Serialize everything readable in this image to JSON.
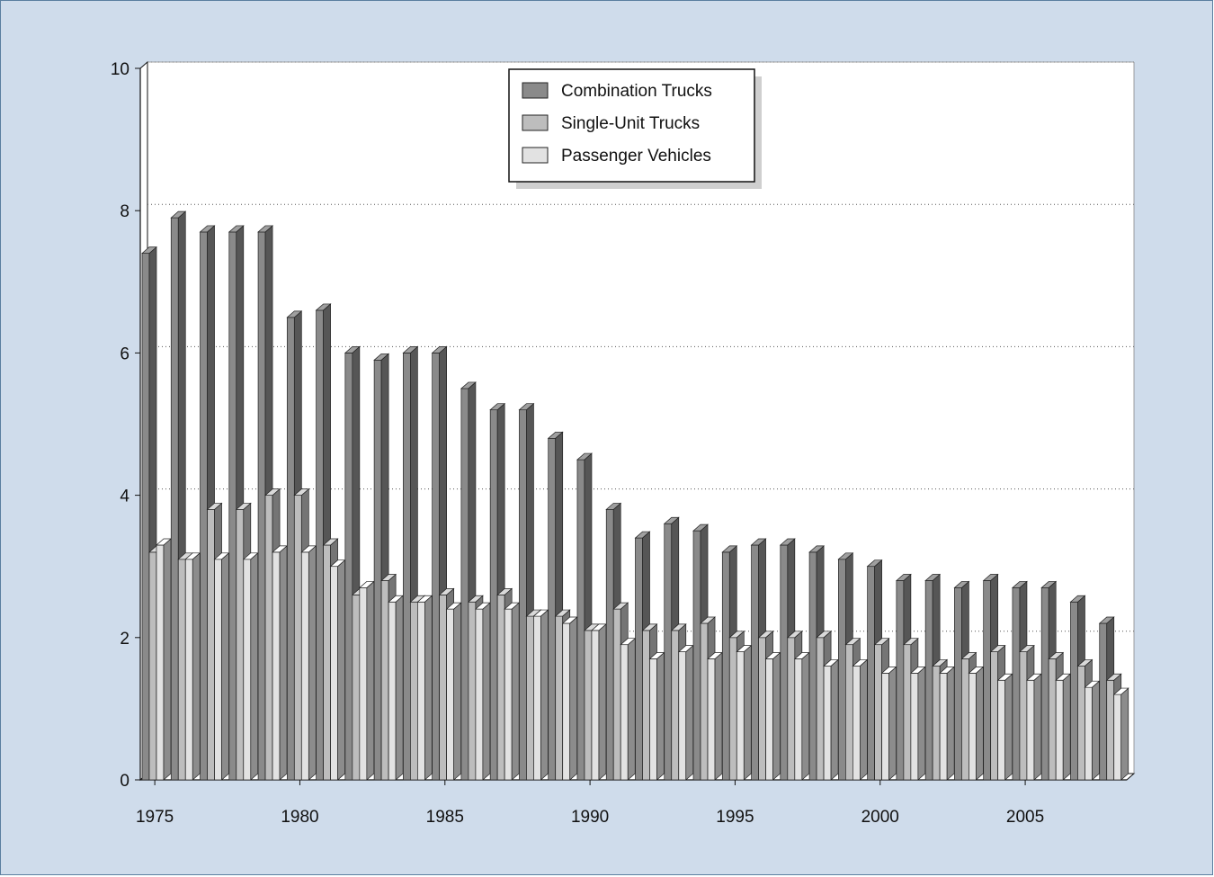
{
  "chart_data": {
    "type": "bar",
    "title": "",
    "xlabel": "",
    "ylabel": "",
    "ylim": [
      0,
      10
    ],
    "y_ticks": [
      "0",
      "2",
      "4",
      "6",
      "8",
      "10"
    ],
    "x_ticks": [
      "1975",
      "1980",
      "1985",
      "1990",
      "1995",
      "2000",
      "2005"
    ],
    "grid": "horizontal dotted",
    "legend_position": "top-center",
    "categories": [
      1975,
      1976,
      1977,
      1978,
      1979,
      1980,
      1981,
      1982,
      1983,
      1984,
      1985,
      1986,
      1987,
      1988,
      1989,
      1990,
      1991,
      1992,
      1993,
      1994,
      1995,
      1996,
      1997,
      1998,
      1999,
      2000,
      2001,
      2002,
      2003,
      2004,
      2005,
      2006,
      2007,
      2008
    ],
    "series": [
      {
        "name": "Combination Trucks",
        "color": "#8a8a8a",
        "values": [
          7.4,
          7.9,
          7.7,
          7.7,
          7.7,
          6.5,
          6.6,
          6.0,
          5.9,
          6.0,
          6.0,
          5.5,
          5.2,
          5.2,
          4.8,
          4.5,
          3.8,
          3.4,
          3.6,
          3.5,
          3.2,
          3.3,
          3.3,
          3.2,
          3.1,
          3.0,
          2.8,
          2.8,
          2.7,
          2.8,
          2.7,
          2.7,
          2.5,
          2.2
        ]
      },
      {
        "name": "Single-Unit Trucks",
        "color": "#bdbdbd",
        "values": [
          3.2,
          3.1,
          3.8,
          3.8,
          4.0,
          4.0,
          3.3,
          2.6,
          2.8,
          2.5,
          2.6,
          2.5,
          2.6,
          2.3,
          2.3,
          2.1,
          2.4,
          2.1,
          2.1,
          2.2,
          2.0,
          2.0,
          2.0,
          2.0,
          1.9,
          1.9,
          1.9,
          1.6,
          1.7,
          1.8,
          1.8,
          1.7,
          1.6,
          1.4
        ]
      },
      {
        "name": "Passenger Vehicles",
        "color": "#e2e2e2",
        "values": [
          3.3,
          3.1,
          3.1,
          3.1,
          3.2,
          3.2,
          3.0,
          2.7,
          2.5,
          2.5,
          2.4,
          2.4,
          2.4,
          2.3,
          2.2,
          2.1,
          1.9,
          1.7,
          1.8,
          1.7,
          1.8,
          1.7,
          1.7,
          1.6,
          1.6,
          1.5,
          1.5,
          1.5,
          1.5,
          1.4,
          1.4,
          1.4,
          1.3,
          1.2
        ]
      }
    ]
  }
}
